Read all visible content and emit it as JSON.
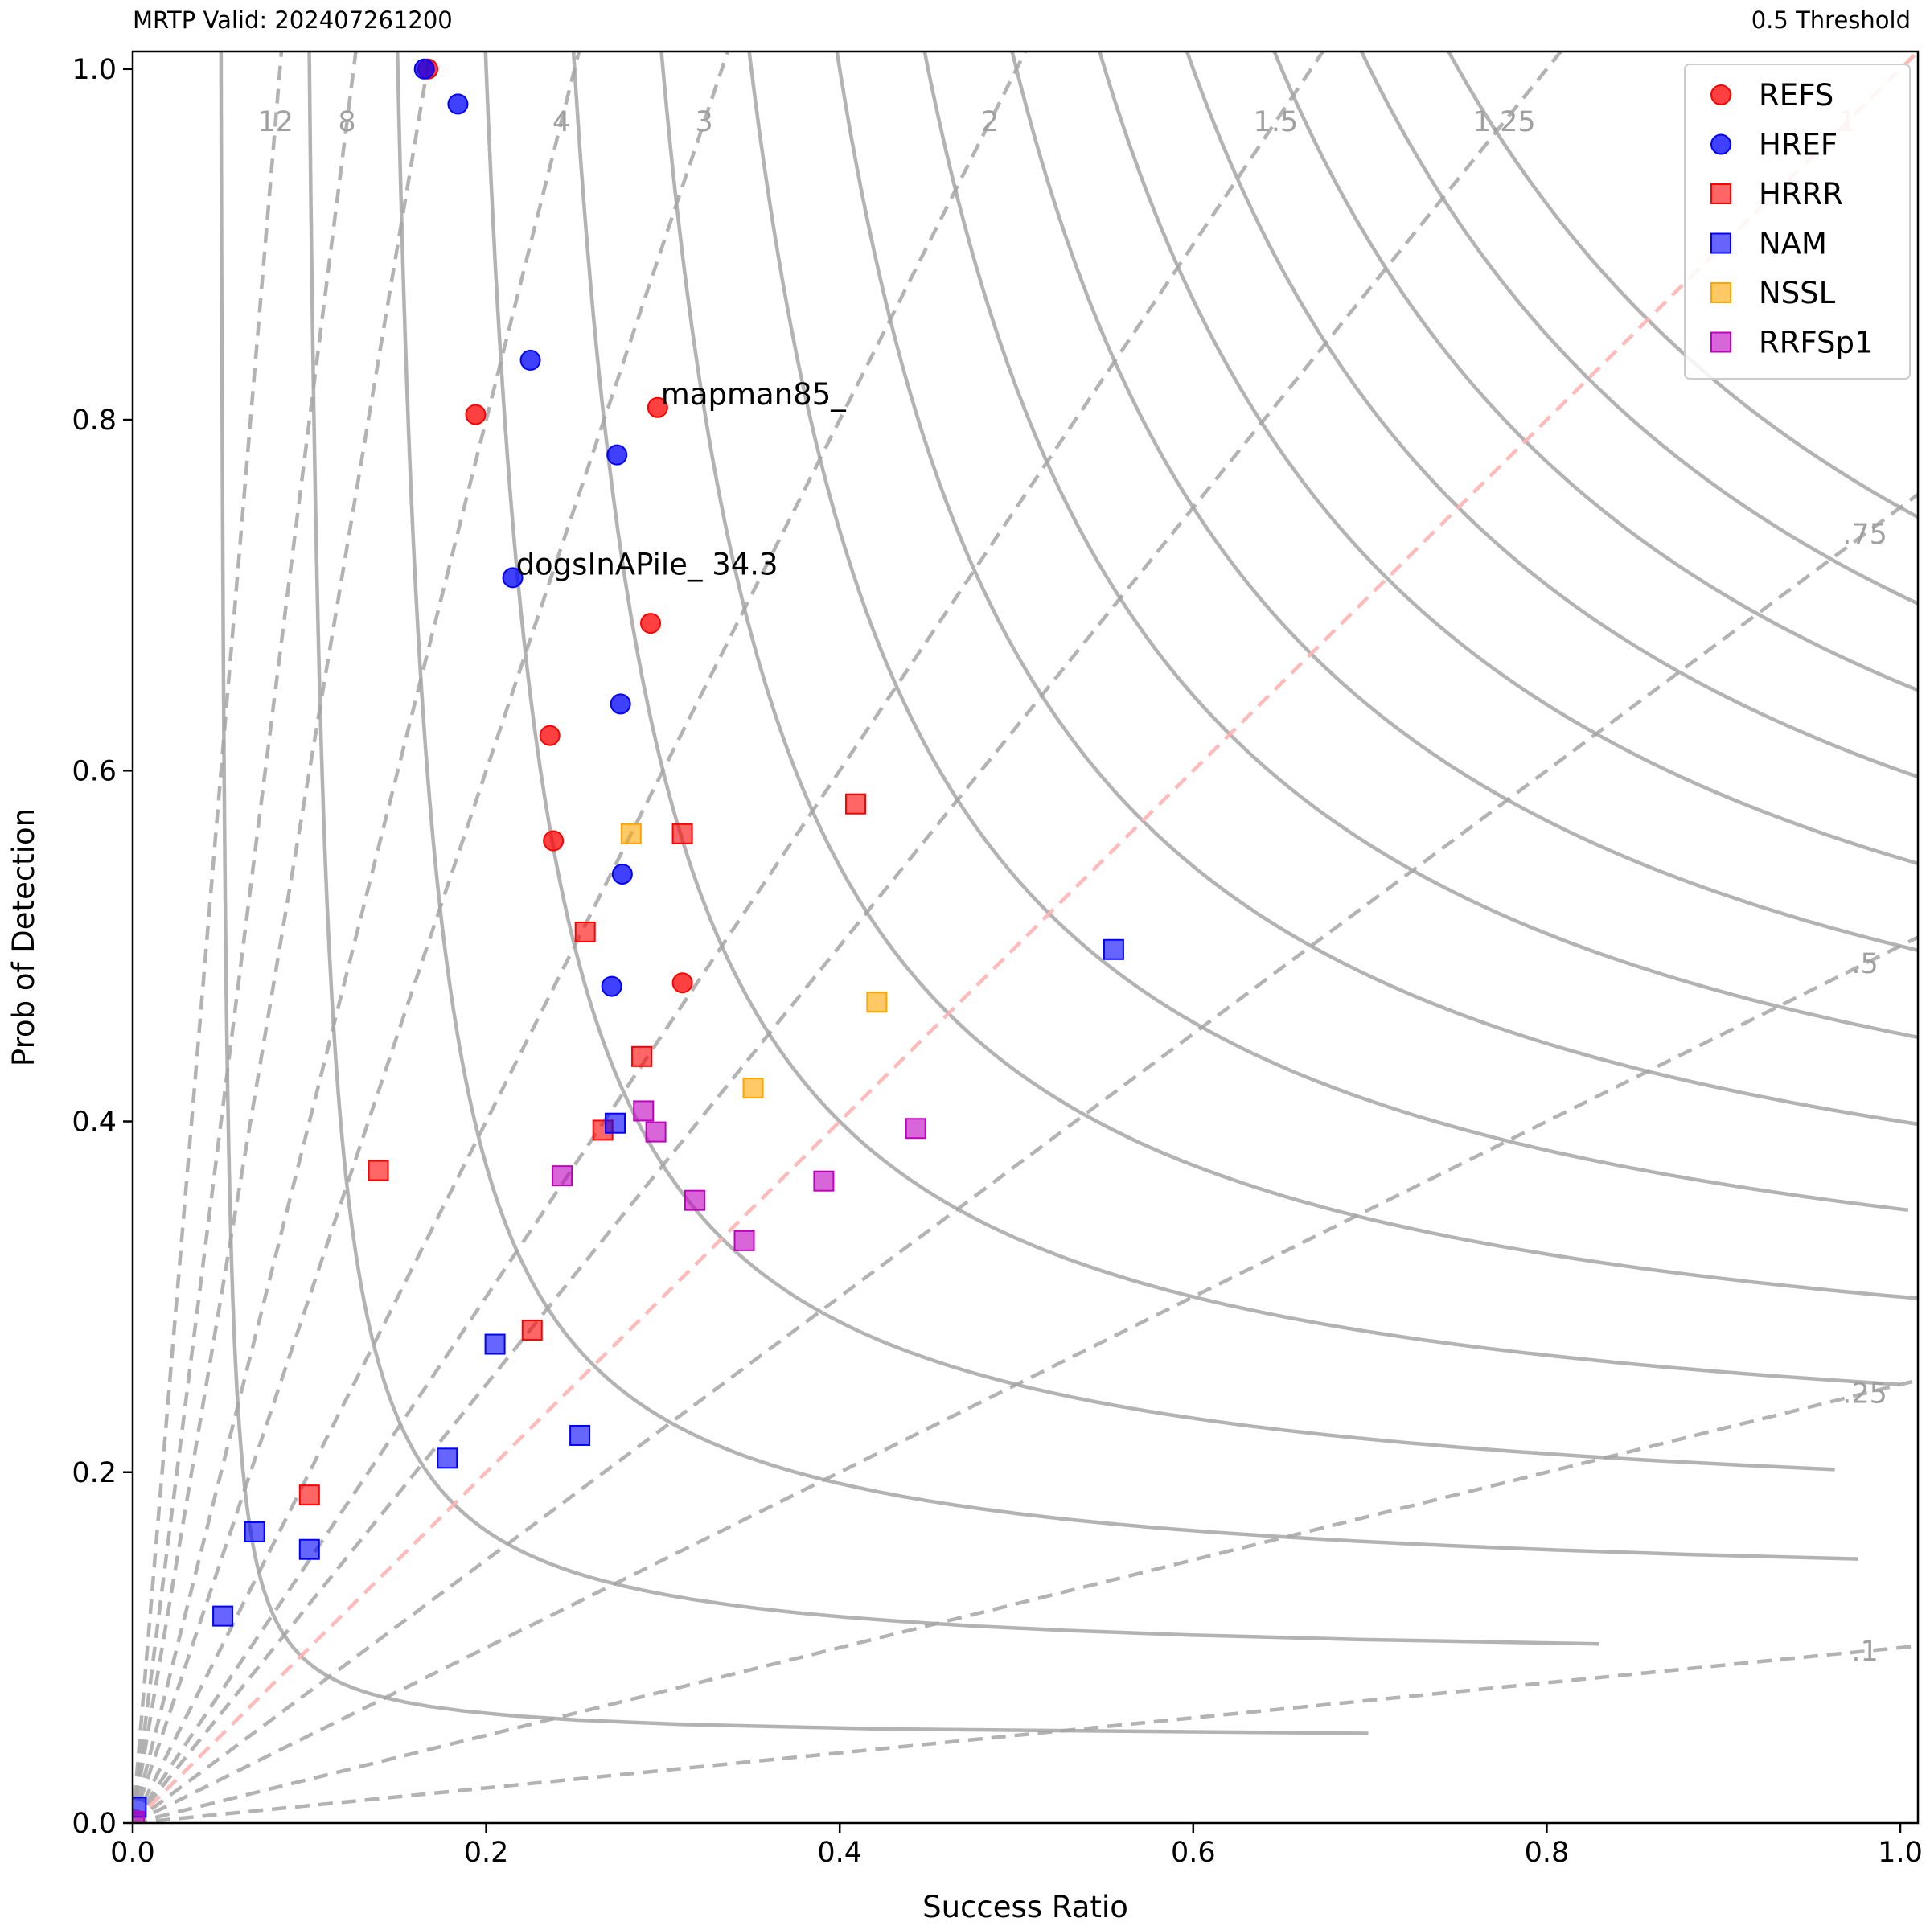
{
  "header": {
    "left": "MRTP Valid: 202407261200",
    "right": "0.5 Threshold"
  },
  "chart_data": {
    "type": "scatter",
    "xlabel": "Success Ratio",
    "ylabel": "Prob of Detection",
    "xlim": [
      0,
      1.01
    ],
    "ylim": [
      0,
      1.01
    ],
    "xticks": [
      0.0,
      0.2,
      0.4,
      0.6,
      0.8,
      1.0
    ],
    "yticks": [
      0.0,
      0.2,
      0.4,
      0.6,
      0.8,
      1.0
    ],
    "xtick_labels": [
      "0.0",
      "0.2",
      "0.4",
      "0.6",
      "0.8",
      "1.0"
    ],
    "ytick_labels": [
      "0.0",
      "0.2",
      "0.4",
      "0.6",
      "0.8",
      "1.0"
    ],
    "legend_position": "top-right",
    "bias_lines": [
      {
        "bias": 12,
        "label": "12"
      },
      {
        "bias": 8,
        "label": "8"
      },
      {
        "bias": 6,
        "label": ""
      },
      {
        "bias": 4,
        "label": "4"
      },
      {
        "bias": 3,
        "label": "3"
      },
      {
        "bias": 2,
        "label": "2"
      },
      {
        "bias": 1.5,
        "label": "1.5"
      },
      {
        "bias": 1.25,
        "label": "1.25"
      },
      {
        "bias": 1,
        "label": "1"
      },
      {
        "bias": 0.75,
        "label": ".75"
      },
      {
        "bias": 0.5,
        "label": ".5"
      },
      {
        "bias": 0.25,
        "label": ".25"
      },
      {
        "bias": 0.1,
        "label": ".1"
      }
    ],
    "csi_contours": [
      0.05,
      0.1,
      0.15,
      0.2,
      0.25,
      0.3,
      0.35,
      0.4,
      0.45,
      0.5,
      0.55,
      0.6,
      0.65,
      0.7,
      0.75
    ],
    "annotations": [
      {
        "text": "mapman85_",
        "x": 0.297,
        "y": 0.807
      },
      {
        "text": "dogsInAPile_ 34.3",
        "x": 0.215,
        "y": 0.71
      }
    ],
    "series": [
      {
        "name": "REFS",
        "marker": "circle",
        "color": "#ff0000",
        "points": [
          [
            0.167,
            1.0
          ],
          [
            0.194,
            0.803
          ],
          [
            0.297,
            0.807
          ],
          [
            0.293,
            0.684
          ],
          [
            0.236,
            0.62
          ],
          [
            0.238,
            0.56
          ],
          [
            0.311,
            0.479
          ]
        ]
      },
      {
        "name": "HREF",
        "marker": "circle",
        "color": "#0000ff",
        "points": [
          [
            0.165,
            1.0
          ],
          [
            0.184,
            0.98
          ],
          [
            0.225,
            0.834
          ],
          [
            0.274,
            0.78
          ],
          [
            0.215,
            0.71
          ],
          [
            0.276,
            0.638
          ],
          [
            0.277,
            0.541
          ],
          [
            0.271,
            0.477
          ]
        ]
      },
      {
        "name": "HRRR",
        "marker": "square",
        "color": "#ff0000",
        "points": [
          [
            0.409,
            0.581
          ],
          [
            0.311,
            0.564
          ],
          [
            0.256,
            0.508
          ],
          [
            0.288,
            0.437
          ],
          [
            0.266,
            0.395
          ],
          [
            0.139,
            0.372
          ],
          [
            0.226,
            0.281
          ],
          [
            0.1,
            0.187
          ]
        ]
      },
      {
        "name": "NAM",
        "marker": "square",
        "color": "#0000ff",
        "points": [
          [
            0.555,
            0.498
          ],
          [
            0.273,
            0.399
          ],
          [
            0.253,
            0.221
          ],
          [
            0.205,
            0.273
          ],
          [
            0.178,
            0.208
          ],
          [
            0.069,
            0.166
          ],
          [
            0.1,
            0.156
          ],
          [
            0.051,
            0.118
          ],
          [
            0.002,
            0.009
          ]
        ]
      },
      {
        "name": "NSSL",
        "marker": "square",
        "color": "#ffa500",
        "points": [
          [
            0.282,
            0.564
          ],
          [
            0.421,
            0.468
          ],
          [
            0.351,
            0.419
          ]
        ]
      },
      {
        "name": "RRFSp1",
        "marker": "square",
        "color": "#bf00bf",
        "points": [
          [
            0.289,
            0.406
          ],
          [
            0.296,
            0.394
          ],
          [
            0.443,
            0.396
          ],
          [
            0.243,
            0.369
          ],
          [
            0.391,
            0.366
          ],
          [
            0.318,
            0.355
          ],
          [
            0.346,
            0.332
          ],
          [
            0.001,
            0.001
          ]
        ]
      }
    ]
  }
}
